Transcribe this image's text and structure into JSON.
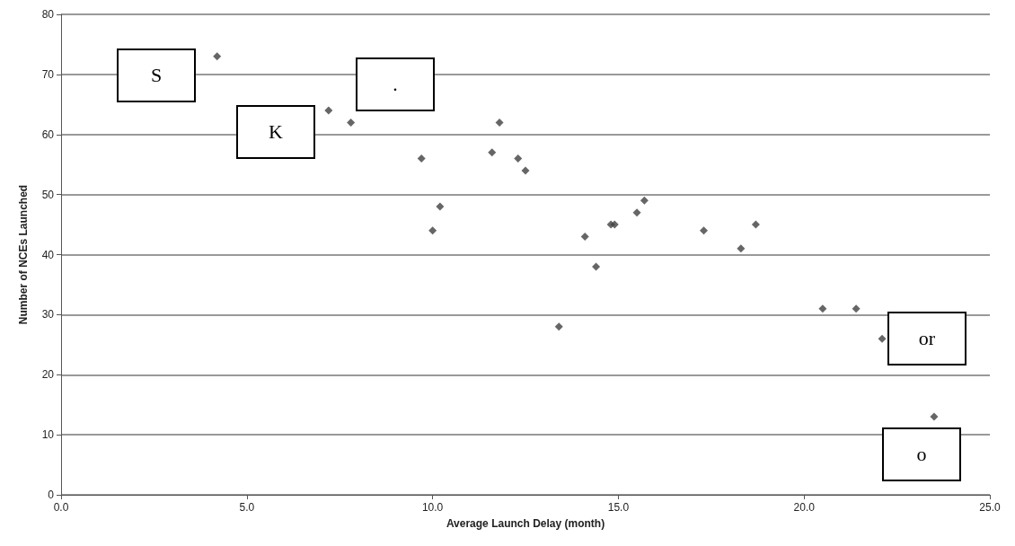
{
  "chart_data": {
    "type": "scatter",
    "xlabel": "Average Launch Delay (month)",
    "ylabel": "Number of NCEs Launched",
    "x": [
      4.2,
      7.2,
      7.8,
      9.7,
      10.0,
      10.2,
      11.6,
      11.8,
      12.3,
      12.5,
      13.4,
      14.1,
      14.4,
      14.8,
      14.9,
      15.5,
      15.7,
      17.3,
      18.3,
      18.7,
      20.5,
      21.4,
      22.1,
      23.5
    ],
    "values": [
      73,
      64,
      62,
      56,
      44,
      48,
      57,
      62,
      56,
      54,
      28,
      43,
      38,
      45,
      45,
      47,
      49,
      44,
      41,
      45,
      31,
      31,
      26,
      13
    ],
    "color": "#404040",
    "marker": "diamond",
    "xlim": [
      0,
      25
    ],
    "xticks": [
      {
        "value": 0,
        "label": "0.0"
      },
      {
        "value": 5,
        "label": "5.0"
      },
      {
        "value": 10,
        "label": "10.0"
      },
      {
        "value": 15,
        "label": "15.0"
      },
      {
        "value": 20,
        "label": "20.0"
      },
      {
        "value": 25,
        "label": "25.0"
      }
    ],
    "ylim": [
      0,
      80
    ],
    "yticks": [
      0,
      10,
      20,
      30,
      40,
      50,
      60,
      70,
      80
    ],
    "grid": "y",
    "annotations": [
      "S",
      "K",
      ".",
      "or",
      "o"
    ]
  }
}
